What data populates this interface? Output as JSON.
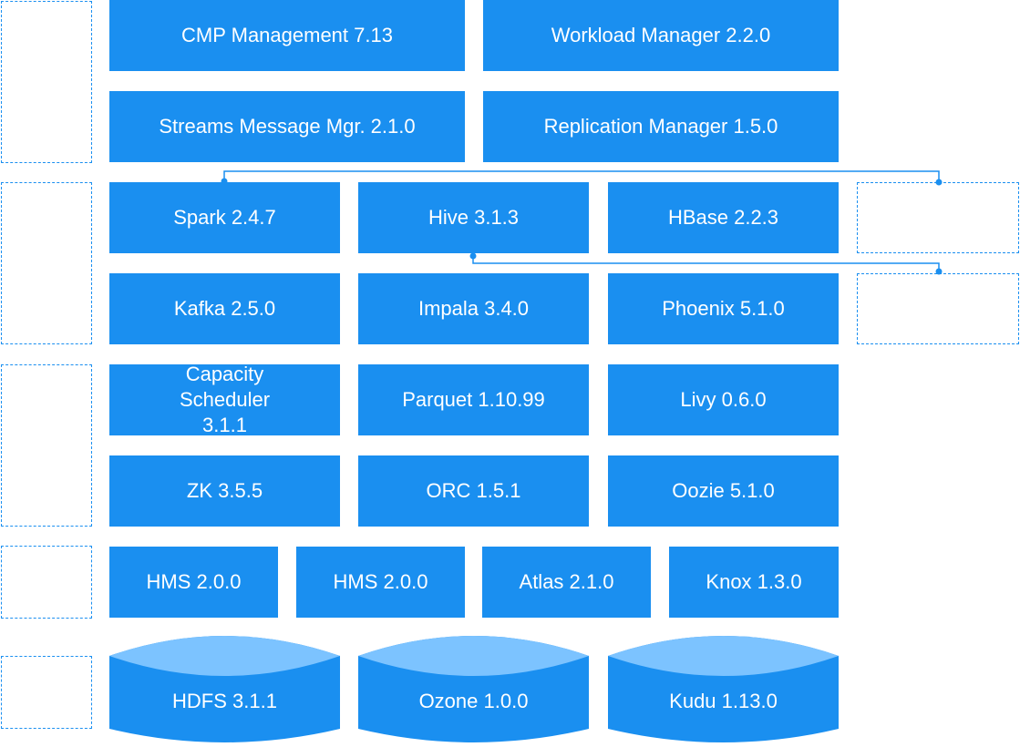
{
  "rows": {
    "r1": [
      "CMP Management 7.13",
      "Workload Manager 2.2.0"
    ],
    "r2": [
      "Streams Message Mgr. 2.1.0",
      "Replication Manager 1.5.0"
    ],
    "r3": [
      "Spark 2.4.7",
      "Hive 3.1.3",
      "HBase 2.2.3"
    ],
    "r4": [
      "Kafka 2.5.0",
      "Impala 3.4.0",
      "Phoenix 5.1.0"
    ],
    "r5": [
      "Capacity Scheduler 3.1.1",
      "Parquet 1.10.99",
      "Livy 0.6.0"
    ],
    "r6": [
      "ZK 3.5.5",
      "ORC 1.5.1",
      "Oozie 5.1.0"
    ],
    "r7": [
      "HMS 2.0.0",
      "HMS 2.0.0",
      "Atlas 2.1.0",
      "Knox 1.3.0"
    ]
  },
  "storage": [
    "HDFS 3.1.1",
    "Ozone 1.0.0",
    "Kudu 1.13.0"
  ],
  "colors": {
    "box": "#1a8ff0",
    "store_top": "#7cc3ff",
    "line": "#1a8ff0"
  }
}
